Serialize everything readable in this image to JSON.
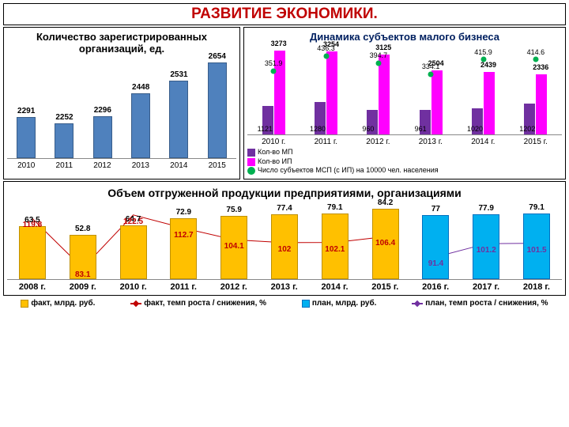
{
  "main_title": "РАЗВИТИЕ ЭКОНОМИКИ.",
  "chart1": {
    "title": "Количество зарегистрированных организаций, ед.",
    "type": "bar",
    "bar_color": "#4f81bd",
    "border": "#385d8a",
    "categories": [
      "2010",
      "2011",
      "2012",
      "2013",
      "2014",
      "2015"
    ],
    "values": [
      2291,
      2252,
      2296,
      2448,
      2531,
      2654
    ],
    "ymax": 2700,
    "ymin": 2100
  },
  "chart2": {
    "title": "Динамика субъектов малого бизнеса",
    "type": "grouped-bar-line",
    "colors": {
      "mp": "#7030a0",
      "ip": "#ff00ff",
      "line": "#00b050"
    },
    "categories": [
      "2010 г.",
      "2011 г.",
      "2012 г.",
      "2013 г.",
      "2014 г.",
      "2015 г."
    ],
    "mp": [
      1121,
      1280,
      960,
      961,
      1020,
      1202
    ],
    "ip": [
      3273,
      3254,
      3125,
      2504,
      2439,
      2336
    ],
    "line": [
      351.9,
      436.3,
      394.7,
      334.1,
      415.9,
      414.6
    ],
    "ymax": 3400,
    "legend": {
      "mp": "Кол-во МП",
      "ip": "Кол-во ИП",
      "line": "Число субъектов МСП (с ИП) на 10000 чел. населения"
    }
  },
  "chart3": {
    "title": "Объем отгруженной продукции предприятиями, организациями",
    "categories": [
      "2008 г.",
      "2009 г.",
      "2010 г.",
      "2011 г.",
      "2012 г.",
      "2013 г.",
      "2014 г.",
      "2015 г.",
      "2016 г.",
      "2017 г.",
      "2018 г."
    ],
    "fact": [
      63.5,
      52.8,
      64.7,
      72.9,
      75.9,
      77.4,
      79.1,
      84.2
    ],
    "plan": [
      77.0,
      77.9,
      79.1
    ],
    "fact_temp": [
      119.8,
      83.1,
      122.5,
      112.7,
      104.1,
      102.0,
      102.1,
      106.4
    ],
    "plan_temp": [
      91.4,
      101.2,
      101.5
    ],
    "colors": {
      "fact": "#ffc000",
      "fact_b": "#bf9000",
      "plan": "#00b0f0",
      "plan_b": "#0070c0",
      "ft": "#c00000",
      "pt": "#7030a0"
    },
    "ymax": 90,
    "legend": {
      "fact": "факт, млрд. руб.",
      "ft": "факт, темп роста / снижения, %",
      "plan": "план, млрд. руб.",
      "pt": "план, темп роста / снижения, %"
    }
  }
}
